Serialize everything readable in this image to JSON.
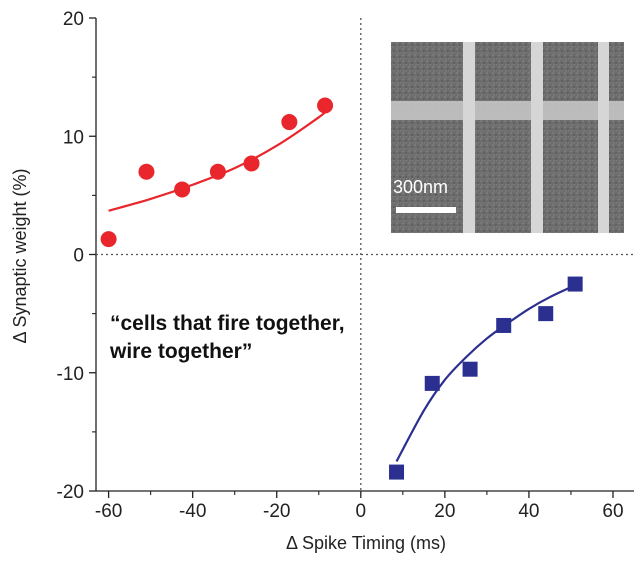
{
  "chart_data": {
    "type": "scatter",
    "title": "",
    "xlabel": "Δ Spike Timing (ms)",
    "ylabel": "Δ Synaptic weight (%)",
    "xlim": [
      -63,
      65
    ],
    "ylim": [
      -20,
      20
    ],
    "x_ticks": [
      -60,
      -40,
      -20,
      0,
      20,
      40,
      60
    ],
    "x_tick_labels": [
      "-60",
      "-40",
      "-20",
      "0",
      "20",
      "40",
      "60"
    ],
    "y_ticks": [
      -20,
      -10,
      0,
      10,
      20
    ],
    "y_tick_labels": [
      "-20",
      "-10",
      "0",
      "10",
      "20"
    ],
    "reference_lines": "dotted lines at x = 0 and y = 0",
    "series": [
      {
        "marker": "circle",
        "color": "#e8262b",
        "points": [
          {
            "x": -60,
            "y": 1.3
          },
          {
            "x": -51,
            "y": 7.0
          },
          {
            "x": -42.5,
            "y": 5.5
          },
          {
            "x": -34,
            "y": 7.0
          },
          {
            "x": -26,
            "y": 7.7
          },
          {
            "x": -17,
            "y": 11.2
          },
          {
            "x": -8.5,
            "y": 12.6
          }
        ],
        "fit": [
          {
            "x": -60,
            "y": 3.7
          },
          {
            "x": -50,
            "y": 4.7
          },
          {
            "x": -40,
            "y": 5.9
          },
          {
            "x": -30,
            "y": 7.3
          },
          {
            "x": -20,
            "y": 9.2
          },
          {
            "x": -10,
            "y": 11.6
          },
          {
            "x": -7,
            "y": 12.5
          }
        ]
      },
      {
        "marker": "square",
        "color": "#2b2f8f",
        "points": [
          {
            "x": 8.5,
            "y": -18.4
          },
          {
            "x": 17,
            "y": -10.9
          },
          {
            "x": 26,
            "y": -9.7
          },
          {
            "x": 34,
            "y": -6.0
          },
          {
            "x": 44,
            "y": -5.0
          },
          {
            "x": 51,
            "y": -2.5
          }
        ],
        "fit": [
          {
            "x": 8.5,
            "y": -17.5
          },
          {
            "x": 15,
            "y": -13.2
          },
          {
            "x": 20,
            "y": -10.6
          },
          {
            "x": 25,
            "y": -8.7
          },
          {
            "x": 30,
            "y": -7.1
          },
          {
            "x": 35,
            "y": -5.8
          },
          {
            "x": 40,
            "y": -4.6
          },
          {
            "x": 45,
            "y": -3.6
          },
          {
            "x": 51,
            "y": -2.6
          }
        ]
      }
    ],
    "annotation": "“cells that fire together,\nwire together”",
    "annotation_lines": [
      "“cells that fire together,",
      "wire together”"
    ],
    "inset": {
      "content": "micrograph of a crossbar grid",
      "scale_bar_label": "300nm"
    }
  }
}
